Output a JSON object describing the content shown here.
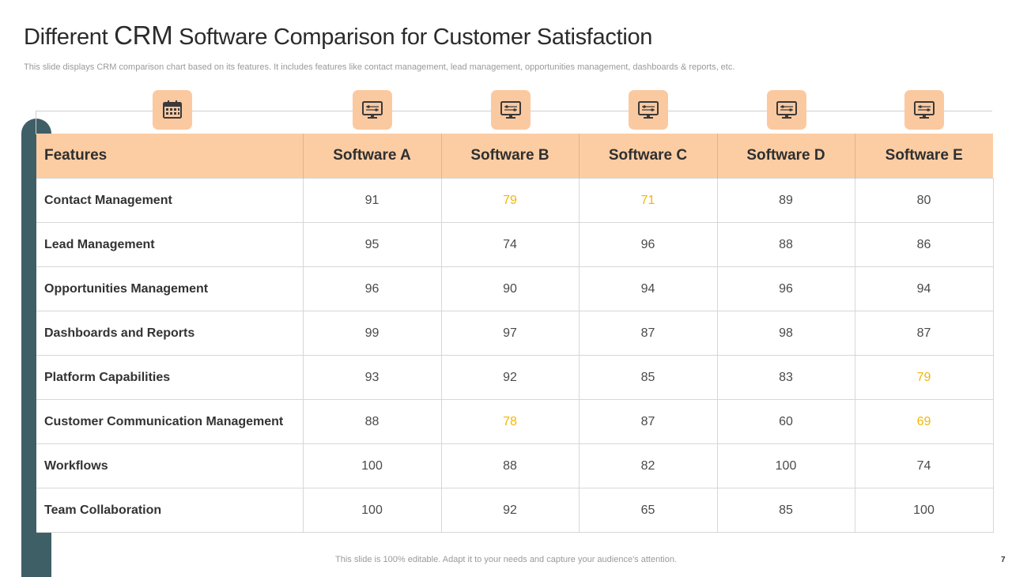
{
  "title": {
    "part1": "Different ",
    "crm": "CRM",
    "part2": " Software Comparison for Customer Satisfaction"
  },
  "subtitle": "This slide displays  CRM comparison chart based on its features. It includes features like contact management, lead management, opportunities management, dashboards & reports, etc.",
  "icons": [
    "calendar-icon",
    "monitor-dashboard-icon",
    "monitor-dashboard-icon",
    "monitor-dashboard-icon",
    "monitor-dashboard-icon",
    "monitor-dashboard-icon"
  ],
  "colors": {
    "header_bg": "#fccda3",
    "icon_bg": "#fbc9a0",
    "side_bar": "#3f5f66",
    "highlight": "#f2b705"
  },
  "table": {
    "headers": [
      "Features",
      "Software A",
      "Software B",
      "Software C",
      "Software D",
      "Software E"
    ],
    "rows": [
      {
        "feature": "Contact Management",
        "values": [
          "91",
          "79",
          "71",
          "89",
          "80"
        ]
      },
      {
        "feature": "Lead Management",
        "values": [
          "95",
          "74",
          "96",
          "88",
          "86"
        ]
      },
      {
        "feature": "Opportunities  Management",
        "values": [
          "96",
          "90",
          "94",
          "96",
          "94"
        ]
      },
      {
        "feature": "Dashboards and Reports",
        "values": [
          "99",
          "97",
          "87",
          "98",
          "87"
        ]
      },
      {
        "feature": "Platform Capabilities",
        "values": [
          "93",
          "92",
          "85",
          "83",
          "79"
        ]
      },
      {
        "feature": "Customer Communication Management",
        "values": [
          "88",
          "78",
          "87",
          "60",
          "69"
        ]
      },
      {
        "feature": "Workflows",
        "values": [
          "100",
          "88",
          "82",
          "100",
          "74"
        ]
      },
      {
        "feature": "Team Collaboration",
        "values": [
          "100",
          "92",
          "65",
          "85",
          "100"
        ]
      }
    ]
  },
  "footer": "This slide is 100% editable. Adapt it to your needs and capture your audience's attention.",
  "page_number": "7"
}
